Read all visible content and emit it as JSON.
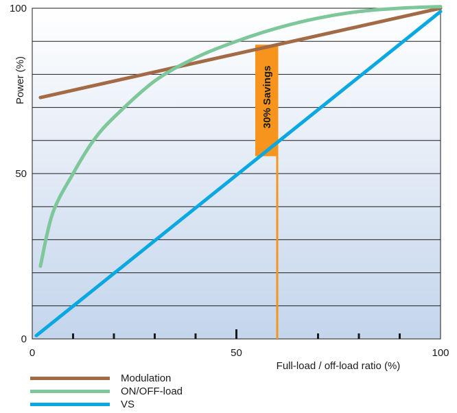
{
  "chart_data": {
    "type": "line",
    "title": "",
    "xlabel": "Full-load / off-load ratio (%)",
    "ylabel": "Power (%)",
    "xlim": [
      0,
      100
    ],
    "ylim": [
      0,
      100
    ],
    "x_ticks": [
      "0",
      "50",
      "100"
    ],
    "y_ticks": [
      "0",
      "50",
      "100"
    ],
    "grid": "horizontal",
    "legend": "bottom-left",
    "series": [
      {
        "name": "Modulation",
        "color": "#a26a45",
        "x": [
          2,
          100
        ],
        "y": [
          73,
          100
        ]
      },
      {
        "name": "ON/OFF-load",
        "color": "#7ec79a",
        "x": [
          2,
          5,
          10,
          15,
          20,
          30,
          40,
          50,
          60,
          70,
          80,
          90,
          100
        ],
        "y": [
          22,
          38,
          50,
          60,
          67,
          78,
          85,
          90,
          94,
          97,
          99,
          100,
          100.5
        ]
      },
      {
        "name": "VS",
        "color": "#0aa8e0",
        "x": [
          1,
          100
        ],
        "y": [
          1,
          99
        ]
      }
    ],
    "annotation": {
      "text": "30% Savings",
      "x": 60,
      "color": "#f7941d"
    }
  }
}
